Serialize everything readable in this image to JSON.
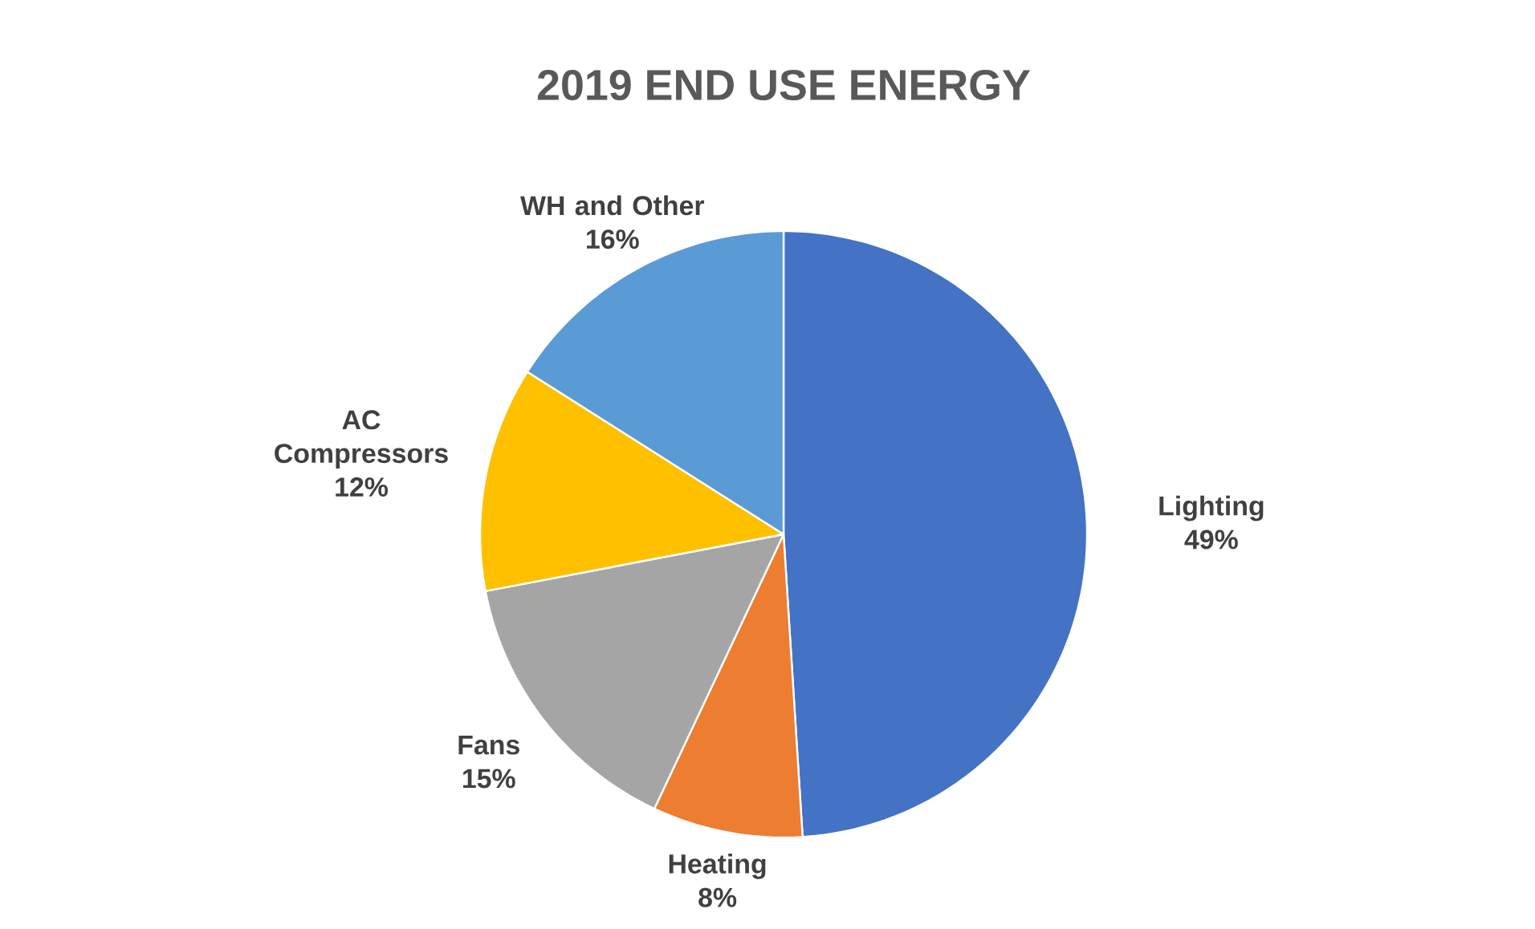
{
  "chart_data": {
    "type": "pie",
    "title": "2019 END USE ENERGY",
    "categories": [
      "Lighting",
      "Heating",
      "Fans",
      "AC Compressors",
      "WH and Other"
    ],
    "values": [
      49,
      8,
      15,
      12,
      16
    ],
    "value_labels": [
      "49%",
      "8%",
      "15%",
      "12%",
      "16%"
    ],
    "colors": [
      "#4472c4",
      "#ed7d31",
      "#a5a5a5",
      "#ffc000",
      "#5b9bd5"
    ]
  }
}
